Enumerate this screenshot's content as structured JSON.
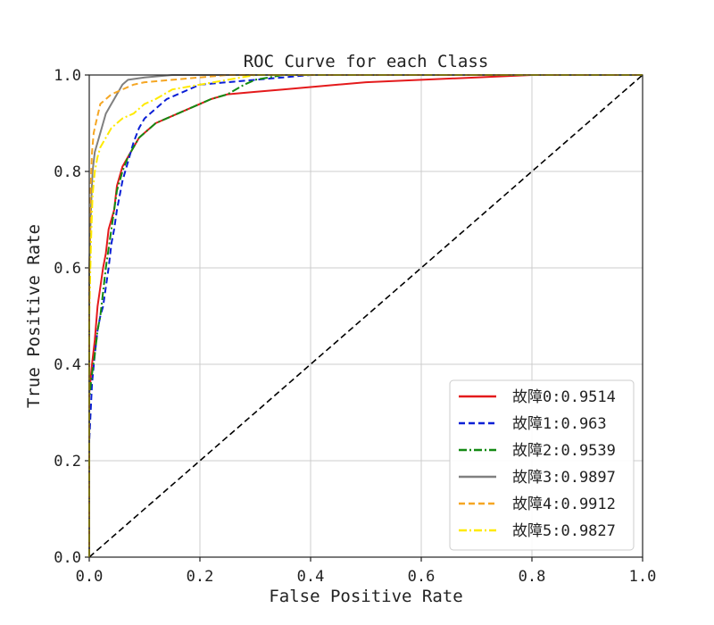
{
  "chart_data": {
    "type": "line",
    "title": "ROC Curve for each Class",
    "xlabel": "False Positive Rate",
    "ylabel": "True Positive Rate",
    "xlim": [
      0,
      1
    ],
    "ylim": [
      0,
      1
    ],
    "xticks": [
      0.0,
      0.2,
      0.4,
      0.6,
      0.8,
      1.0
    ],
    "yticks": [
      0.0,
      0.2,
      0.4,
      0.6,
      0.8,
      1.0
    ],
    "xtick_labels": [
      "0.0",
      "0.2",
      "0.4",
      "0.6",
      "0.8",
      "1.0"
    ],
    "ytick_labels": [
      "0.0",
      "0.2",
      "0.4",
      "0.6",
      "0.8",
      "1.0"
    ],
    "grid": true,
    "legend_position": "lower-right",
    "reference_line": {
      "x": [
        0,
        1
      ],
      "y": [
        0,
        1
      ],
      "color": "#000000",
      "style": "dashed"
    },
    "series": [
      {
        "name": "故障0:0.9514",
        "color": "#e41a1c",
        "style": "solid",
        "x": [
          0,
          0,
          0.005,
          0.01,
          0.015,
          0.02,
          0.025,
          0.03,
          0.035,
          0.04,
          0.045,
          0.05,
          0.055,
          0.06,
          0.07,
          0.08,
          0.09,
          0.1,
          0.12,
          0.14,
          0.16,
          0.18,
          0.2,
          0.22,
          0.25,
          0.3,
          0.35,
          0.4,
          0.45,
          0.5,
          0.6,
          0.7,
          0.8,
          1.0
        ],
        "y": [
          0,
          0.34,
          0.4,
          0.45,
          0.52,
          0.56,
          0.6,
          0.63,
          0.68,
          0.7,
          0.72,
          0.77,
          0.79,
          0.81,
          0.83,
          0.85,
          0.87,
          0.88,
          0.9,
          0.91,
          0.92,
          0.93,
          0.94,
          0.95,
          0.96,
          0.965,
          0.97,
          0.975,
          0.98,
          0.985,
          0.99,
          0.995,
          1.0,
          1.0
        ]
      },
      {
        "name": "故障1:0.963",
        "color": "#0a1fd6",
        "style": "dashed",
        "x": [
          0,
          0,
          0.005,
          0.01,
          0.015,
          0.02,
          0.025,
          0.03,
          0.035,
          0.04,
          0.045,
          0.05,
          0.055,
          0.06,
          0.07,
          0.08,
          0.09,
          0.1,
          0.12,
          0.14,
          0.16,
          0.18,
          0.2,
          0.25,
          0.3,
          0.35,
          0.4,
          1.0
        ],
        "y": [
          0,
          0.24,
          0.36,
          0.42,
          0.47,
          0.5,
          0.52,
          0.56,
          0.6,
          0.65,
          0.68,
          0.72,
          0.75,
          0.78,
          0.82,
          0.86,
          0.89,
          0.91,
          0.93,
          0.95,
          0.96,
          0.97,
          0.98,
          0.985,
          0.99,
          0.995,
          1.0,
          1.0
        ]
      },
      {
        "name": "故障2:0.9539",
        "color": "#138a13",
        "style": "dashdot",
        "x": [
          0,
          0,
          0.005,
          0.01,
          0.015,
          0.02,
          0.025,
          0.03,
          0.035,
          0.04,
          0.045,
          0.05,
          0.055,
          0.06,
          0.07,
          0.08,
          0.09,
          0.1,
          0.12,
          0.14,
          0.16,
          0.18,
          0.2,
          0.22,
          0.25,
          0.28,
          0.3,
          0.35,
          1.0
        ],
        "y": [
          0,
          0.33,
          0.38,
          0.42,
          0.47,
          0.5,
          0.55,
          0.6,
          0.64,
          0.68,
          0.72,
          0.76,
          0.78,
          0.8,
          0.83,
          0.85,
          0.87,
          0.88,
          0.9,
          0.91,
          0.92,
          0.93,
          0.94,
          0.95,
          0.96,
          0.98,
          0.99,
          1.0,
          1.0
        ]
      },
      {
        "name": "故障3:0.9897",
        "color": "#808080",
        "style": "solid",
        "x": [
          0,
          0,
          0.003,
          0.006,
          0.01,
          0.015,
          0.02,
          0.025,
          0.03,
          0.04,
          0.05,
          0.06,
          0.07,
          0.1,
          0.15,
          0.2,
          1.0
        ],
        "y": [
          0,
          0.6,
          0.72,
          0.8,
          0.84,
          0.86,
          0.88,
          0.9,
          0.92,
          0.94,
          0.96,
          0.98,
          0.99,
          0.995,
          1.0,
          1.0,
          1.0
        ]
      },
      {
        "name": "故障4:0.9912",
        "color": "#f5a623",
        "style": "dashed",
        "x": [
          0,
          0,
          0.002,
          0.005,
          0.008,
          0.012,
          0.016,
          0.02,
          0.03,
          0.04,
          0.06,
          0.08,
          0.1,
          0.15,
          0.2,
          0.25,
          1.0
        ],
        "y": [
          0,
          0.55,
          0.75,
          0.84,
          0.88,
          0.9,
          0.92,
          0.94,
          0.95,
          0.96,
          0.97,
          0.98,
          0.985,
          0.99,
          0.995,
          1.0,
          1.0
        ]
      },
      {
        "name": "故障5:0.9827",
        "color": "#ffea00",
        "style": "dashdot",
        "x": [
          0,
          0,
          0.003,
          0.006,
          0.01,
          0.015,
          0.02,
          0.03,
          0.04,
          0.05,
          0.06,
          0.08,
          0.1,
          0.12,
          0.15,
          0.2,
          0.25,
          0.3,
          1.0
        ],
        "y": [
          0,
          0.5,
          0.65,
          0.75,
          0.8,
          0.83,
          0.85,
          0.87,
          0.89,
          0.9,
          0.91,
          0.92,
          0.94,
          0.95,
          0.97,
          0.98,
          0.99,
          1.0,
          1.0
        ]
      }
    ]
  }
}
